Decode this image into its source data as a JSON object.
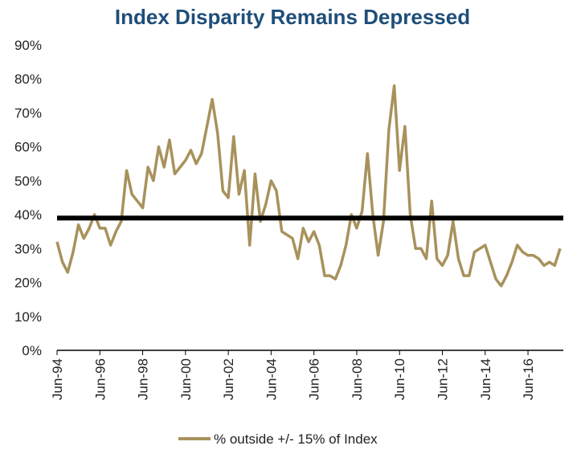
{
  "chart_data": {
    "type": "line",
    "title": "Index Disparity Remains Depressed",
    "categories": [
      "Jun-94",
      null,
      null,
      null,
      null,
      null,
      null,
      null,
      "Jun-96",
      null,
      null,
      null,
      null,
      null,
      null,
      null,
      "Jun-98",
      null,
      null,
      null,
      null,
      null,
      null,
      null,
      "Jun-00",
      null,
      null,
      null,
      null,
      null,
      null,
      null,
      "Jun-02",
      null,
      null,
      null,
      null,
      null,
      null,
      null,
      "Jun-04",
      null,
      null,
      null,
      null,
      null,
      null,
      null,
      "Jun-06",
      null,
      null,
      null,
      null,
      null,
      null,
      null,
      "Jun-08",
      null,
      null,
      null,
      null,
      null,
      null,
      null,
      "Jun-10",
      null,
      null,
      null,
      null,
      null,
      null,
      null,
      "Jun-12",
      null,
      null,
      null,
      null,
      null,
      null,
      null,
      "Jun-14",
      null,
      null,
      null,
      null,
      null,
      null,
      null,
      "Jun-16",
      null,
      null,
      null,
      null,
      null,
      null
    ],
    "series": [
      {
        "name": "% outside +/- 15% of Index",
        "color": "#a8925c",
        "values": [
          32,
          26,
          23,
          29,
          37,
          33,
          36,
          40,
          36,
          36,
          31,
          35,
          38,
          53,
          46,
          44,
          42,
          54,
          50,
          60,
          54,
          62,
          52,
          54,
          56,
          59,
          55,
          58,
          66,
          74,
          64,
          47,
          45,
          63,
          46,
          53,
          31,
          52,
          38,
          43,
          50,
          47,
          35,
          34,
          33,
          27,
          36,
          32,
          35,
          31,
          22,
          22,
          21,
          25,
          31,
          40,
          36,
          41,
          58,
          40,
          28,
          38,
          65,
          78,
          53,
          66,
          40,
          30,
          30,
          27,
          44,
          27,
          25,
          28,
          38,
          27,
          22,
          22,
          29,
          30,
          31,
          26,
          21,
          19,
          22,
          26,
          31,
          29,
          28,
          28,
          27,
          25,
          26,
          25,
          30
        ]
      }
    ],
    "reference_line": {
      "value": 39,
      "color": "#000000"
    },
    "ylim": [
      0,
      90
    ],
    "yticks": [
      {
        "value": 0,
        "label": "0%"
      },
      {
        "value": 10,
        "label": "10%"
      },
      {
        "value": 20,
        "label": "20%"
      },
      {
        "value": 30,
        "label": "30%"
      },
      {
        "value": 40,
        "label": "40%"
      },
      {
        "value": 50,
        "label": "50%"
      },
      {
        "value": 60,
        "label": "60%"
      },
      {
        "value": 70,
        "label": "70%"
      },
      {
        "value": 80,
        "label": "80%"
      },
      {
        "value": 90,
        "label": "90%"
      }
    ],
    "legend": "bottom"
  }
}
